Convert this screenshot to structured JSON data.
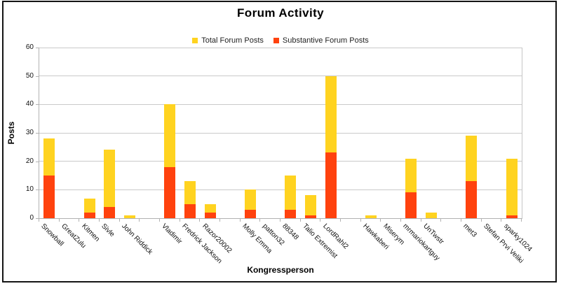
{
  "chart_data": {
    "type": "bar",
    "title": "Forum Activity",
    "xlabel": "Kongressperson",
    "ylabel": "Posts",
    "ylim": [
      0,
      60
    ],
    "yticks": [
      0,
      10,
      20,
      30,
      40,
      50,
      60
    ],
    "grid": true,
    "legend_position": "top-center",
    "series_meta": [
      {
        "name": "Total Forum Posts",
        "color": "#FFD320"
      },
      {
        "name": "Substantive Forum Posts",
        "color": "#FF420E"
      }
    ],
    "rows": [
      {
        "label": "Snowball",
        "total": 28,
        "substantive": 15
      },
      {
        "label": "GreatZulu",
        "total": 0,
        "substantive": 0
      },
      {
        "label": "Kitmen",
        "total": 7,
        "substantive": 2
      },
      {
        "label": "Sivle",
        "total": 24,
        "substantive": 4
      },
      {
        "label": "John Riddick",
        "total": 1,
        "substantive": 0
      },
      {
        "label": "",
        "total": 0,
        "substantive": 0
      },
      {
        "label": "Vladimir",
        "total": 40,
        "substantive": 18
      },
      {
        "label": "Fredrick Jackson",
        "total": 13,
        "substantive": 5
      },
      {
        "label": "Razor20002",
        "total": 5,
        "substantive": 2
      },
      {
        "label": "",
        "total": 0,
        "substantive": 0
      },
      {
        "label": "Molly Emma",
        "total": 10,
        "substantive": 3
      },
      {
        "label": "patton32",
        "total": 0,
        "substantive": 0
      },
      {
        "label": "88348",
        "total": 15,
        "substantive": 3
      },
      {
        "label": "Talio Extremist",
        "total": 8,
        "substantive": 1
      },
      {
        "label": "LordRahl2",
        "total": 50,
        "substantive": 23
      },
      {
        "label": "",
        "total": 0,
        "substantive": 0
      },
      {
        "label": "Hawkaberi",
        "total": 1,
        "substantive": 0
      },
      {
        "label": "Miserym",
        "total": 0,
        "substantive": 0
      },
      {
        "label": "mrmariokartguy",
        "total": 21,
        "substantive": 9
      },
      {
        "label": "UnTwstr",
        "total": 2,
        "substantive": 0
      },
      {
        "label": "",
        "total": 0,
        "substantive": 0
      },
      {
        "label": "met3",
        "total": 29,
        "substantive": 13
      },
      {
        "label": "Stefan Prvi Veliki",
        "total": 0,
        "substantive": 0
      },
      {
        "label": "sparky1024",
        "total": 21,
        "substantive": 1
      }
    ]
  },
  "colors": {
    "grid": "#c9c9c9",
    "axis": "#b2b2b2",
    "frame_border": "#141414"
  }
}
